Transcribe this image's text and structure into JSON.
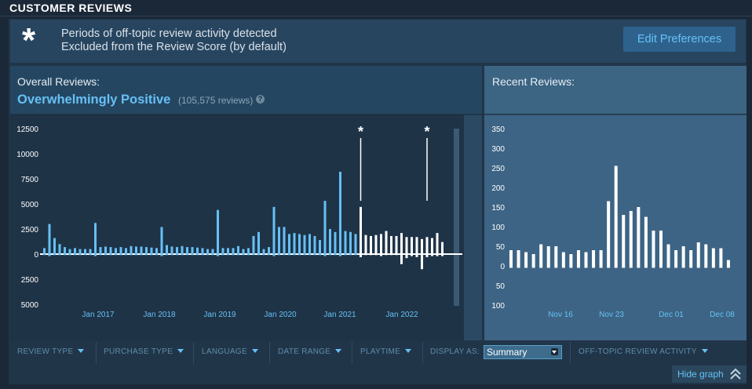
{
  "section": {
    "title": "CUSTOMER REVIEWS"
  },
  "banner": {
    "line1": "Periods of off-topic review activity detected",
    "line2": "Excluded from the Review Score (by default)",
    "edit_button": "Edit Preferences"
  },
  "overall": {
    "label": "Overall Reviews:",
    "score": "Overwhelmingly Positive",
    "count": "(105,575 reviews)",
    "help_icon": "?"
  },
  "recent": {
    "label": "Recent Reviews:"
  },
  "controls": {
    "review_type": "REVIEW TYPE",
    "purchase_type": "PURCHASE TYPE",
    "language": "LANGUAGE",
    "date_range": "DATE RANGE",
    "playtime": "PLAYTIME",
    "display_as_label": "DISPLAY AS:",
    "display_as_value": "Summary",
    "off_topic": "OFF-TOPIC REVIEW ACTIVITY",
    "hide_graph": "Hide graph"
  },
  "colors": {
    "positive": "#66c0f4",
    "off_topic": "#ffffff",
    "panel": "#213549",
    "accent": "#67c1f5"
  },
  "chart_data": [
    {
      "type": "bar",
      "name": "overall-reviews-histogram",
      "y_ticks_positive": [
        "12500",
        "10000",
        "7500",
        "5000",
        "2500",
        "0"
      ],
      "y_ticks_negative": [
        "2500",
        "5000"
      ],
      "ylim": [
        -5000,
        12500
      ],
      "x_ticks": [
        "Jan 2017",
        "Jan 2018",
        "Jan 2019",
        "Jan 2020",
        "Jan 2021",
        "Jan 2022"
      ],
      "off_topic_marker": "*",
      "bars_positive": [
        600,
        3000,
        1600,
        1000,
        700,
        500,
        600,
        500,
        500,
        500,
        3100,
        700,
        750,
        700,
        600,
        700,
        600,
        800,
        750,
        750,
        700,
        650,
        600,
        2700,
        900,
        750,
        700,
        800,
        700,
        700,
        650,
        600,
        500,
        500,
        4400,
        600,
        600,
        600,
        800,
        500,
        600,
        1800,
        2200,
        500,
        700,
        4700,
        2700,
        2700,
        2000,
        2100,
        2000,
        1900,
        2000,
        1800,
        1400,
        5300,
        2500,
        2200,
        8200,
        2300,
        2200,
        2000,
        4700,
        1900,
        1800,
        1900,
        2000,
        2300,
        1800,
        1800,
        2100,
        1700,
        1700,
        1700,
        1500,
        1700,
        1600,
        2100,
        1200
      ],
      "bars_negative": [
        100,
        200,
        100,
        100,
        100,
        100,
        100,
        100,
        100,
        100,
        200,
        100,
        100,
        100,
        100,
        100,
        100,
        100,
        100,
        100,
        100,
        100,
        100,
        200,
        100,
        100,
        100,
        100,
        100,
        100,
        100,
        100,
        100,
        100,
        200,
        100,
        100,
        100,
        100,
        100,
        100,
        100,
        100,
        100,
        100,
        200,
        100,
        100,
        100,
        100,
        100,
        100,
        100,
        100,
        100,
        200,
        100,
        100,
        200,
        100,
        100,
        100,
        300,
        100,
        100,
        100,
        200,
        100,
        100,
        100,
        1000,
        400,
        200,
        300,
        1500,
        300,
        200,
        200,
        200
      ],
      "off_topic_start_index": 62
    },
    {
      "type": "bar",
      "name": "recent-reviews-histogram",
      "y_ticks_positive": [
        "350",
        "300",
        "250",
        "200",
        "150",
        "100",
        "50",
        "0"
      ],
      "y_ticks_negative": [
        "50",
        "100"
      ],
      "ylim": [
        -100,
        350
      ],
      "x_ticks": [
        "Nov 16",
        "Nov 23",
        "Dec 01",
        "Dec 08"
      ],
      "bars_positive": [
        40,
        40,
        35,
        30,
        55,
        50,
        50,
        35,
        30,
        40,
        35,
        40,
        40,
        165,
        255,
        130,
        140,
        150,
        125,
        90,
        90,
        55,
        40,
        50,
        40,
        60,
        55,
        45,
        45,
        15
      ],
      "bars_negative": [
        5,
        5,
        5,
        5,
        5,
        5,
        5,
        5,
        5,
        5,
        5,
        5,
        5,
        5,
        5,
        5,
        5,
        5,
        5,
        5,
        5,
        5,
        5,
        5,
        5,
        5,
        5,
        5,
        5,
        5
      ]
    }
  ]
}
